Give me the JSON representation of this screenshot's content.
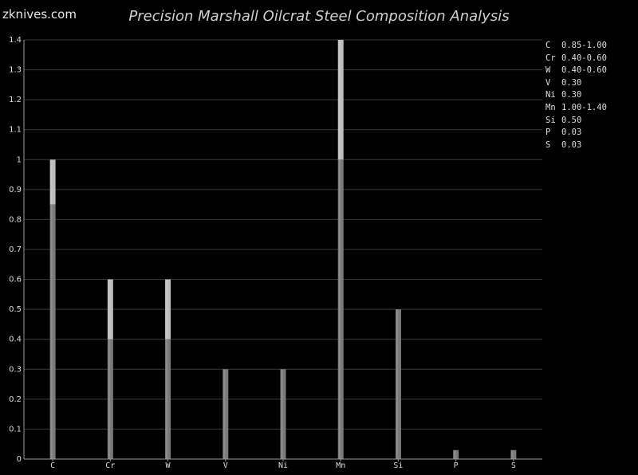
{
  "brand": "zknives.com",
  "chart_data": {
    "type": "bar",
    "title": "Precision Marshall Oilcrat Steel Composition Analysis",
    "categories": [
      "C",
      "Cr",
      "W",
      "V",
      "Ni",
      "Mn",
      "Si",
      "P",
      "S"
    ],
    "series": [
      {
        "values": [
          0.85,
          0.4,
          0.4,
          0.3,
          0.3,
          1.0,
          0.5,
          0.03,
          0.03
        ]
      },
      {
        "values": [
          1.0,
          0.6,
          0.6,
          0.3,
          0.3,
          1.4,
          0.5,
          0.03,
          0.03
        ]
      }
    ],
    "ylim": [
      0,
      1.4
    ],
    "yticks": [
      "0",
      "0.1",
      "0.2",
      "0.3",
      "0.4",
      "0.5",
      "0.6",
      "0.7",
      "0.8",
      "0.9",
      "1",
      "1.1",
      "1.2",
      "1.3",
      "1.4"
    ],
    "grid": true,
    "legend_position": "right",
    "legend": [
      {
        "symbol": "C",
        "value": "0.85-1.00"
      },
      {
        "symbol": "Cr",
        "value": "0.40-0.60"
      },
      {
        "symbol": "W",
        "value": "0.40-0.60"
      },
      {
        "symbol": "V",
        "value": "0.30"
      },
      {
        "symbol": "Ni",
        "value": "0.30"
      },
      {
        "symbol": "Mn",
        "value": "1.00-1.40"
      },
      {
        "symbol": "Si",
        "value": "0.50"
      },
      {
        "symbol": "P",
        "value": "0.03"
      },
      {
        "symbol": "S",
        "value": "0.03"
      }
    ],
    "colors": {
      "min_bar": "#7a7a7a",
      "range_bar": "#bdbdbd",
      "grid": "#3a3a3a",
      "axis": "#9a9a9a",
      "text": "#dcdcdc"
    }
  }
}
